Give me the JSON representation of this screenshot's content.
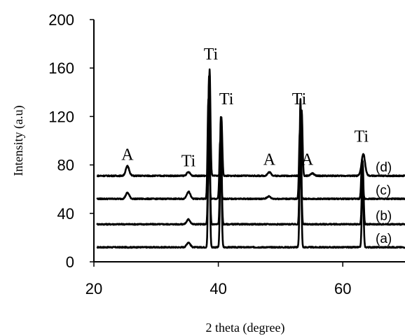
{
  "chart_data": {
    "type": "line",
    "title": "",
    "xlabel": "2 theta (degree)",
    "ylabel": "Intensity (a.u)",
    "xlim": [
      20,
      70
    ],
    "ylim": [
      0,
      200
    ],
    "x_ticks": [
      "20",
      "40",
      "60"
    ],
    "y_ticks": [
      "0",
      "40",
      "80",
      "120",
      "160",
      "200"
    ],
    "grid": false,
    "series": [
      {
        "name": "(a)",
        "baseline": 12,
        "peaks": [
          {
            "x": 35.2,
            "height": 4
          },
          {
            "x": 38.5,
            "height": 122
          },
          {
            "x": 40.4,
            "height": 89
          },
          {
            "x": 53.2,
            "height": 103
          },
          {
            "x": 63.2,
            "height": 61
          }
        ]
      },
      {
        "name": "(b)",
        "baseline": 31,
        "peaks": [
          {
            "x": 35.2,
            "height": 4
          },
          {
            "x": 38.5,
            "height": 122
          },
          {
            "x": 40.4,
            "height": 89
          },
          {
            "x": 53.2,
            "height": 103
          },
          {
            "x": 63.2,
            "height": 52
          }
        ]
      },
      {
        "name": "(c)",
        "baseline": 52,
        "peaks": [
          {
            "x": 25.4,
            "height": 5
          },
          {
            "x": 35.2,
            "height": 6
          },
          {
            "x": 38.4,
            "height": 82
          },
          {
            "x": 40.3,
            "height": 48
          },
          {
            "x": 48.1,
            "height": 2
          },
          {
            "x": 53.1,
            "height": 56
          },
          {
            "x": 63.1,
            "height": 33
          }
        ]
      },
      {
        "name": "(d)",
        "baseline": 71,
        "peaks": [
          {
            "x": 25.4,
            "height": 8
          },
          {
            "x": 35.2,
            "height": 3
          },
          {
            "x": 38.6,
            "height": 88
          },
          {
            "x": 40.5,
            "height": 48
          },
          {
            "x": 48.2,
            "height": 3
          },
          {
            "x": 55.1,
            "height": 2
          },
          {
            "x": 53.4,
            "height": 54
          },
          {
            "x": 63.3,
            "height": 18
          }
        ]
      }
    ],
    "peak_labels": [
      {
        "text": "A",
        "x": 25.4,
        "y": 84
      },
      {
        "text": "Ti",
        "x": 35.2,
        "y": 79
      },
      {
        "text": "Ti",
        "x": 38.8,
        "y": 167
      },
      {
        "text": "Ti",
        "x": 41.3,
        "y": 130
      },
      {
        "text": "A",
        "x": 48.2,
        "y": 80
      },
      {
        "text": "A",
        "x": 54.3,
        "y": 80
      },
      {
        "text": "Ti",
        "x": 53.0,
        "y": 130
      },
      {
        "text": "Ti",
        "x": 63.0,
        "y": 99
      }
    ]
  }
}
